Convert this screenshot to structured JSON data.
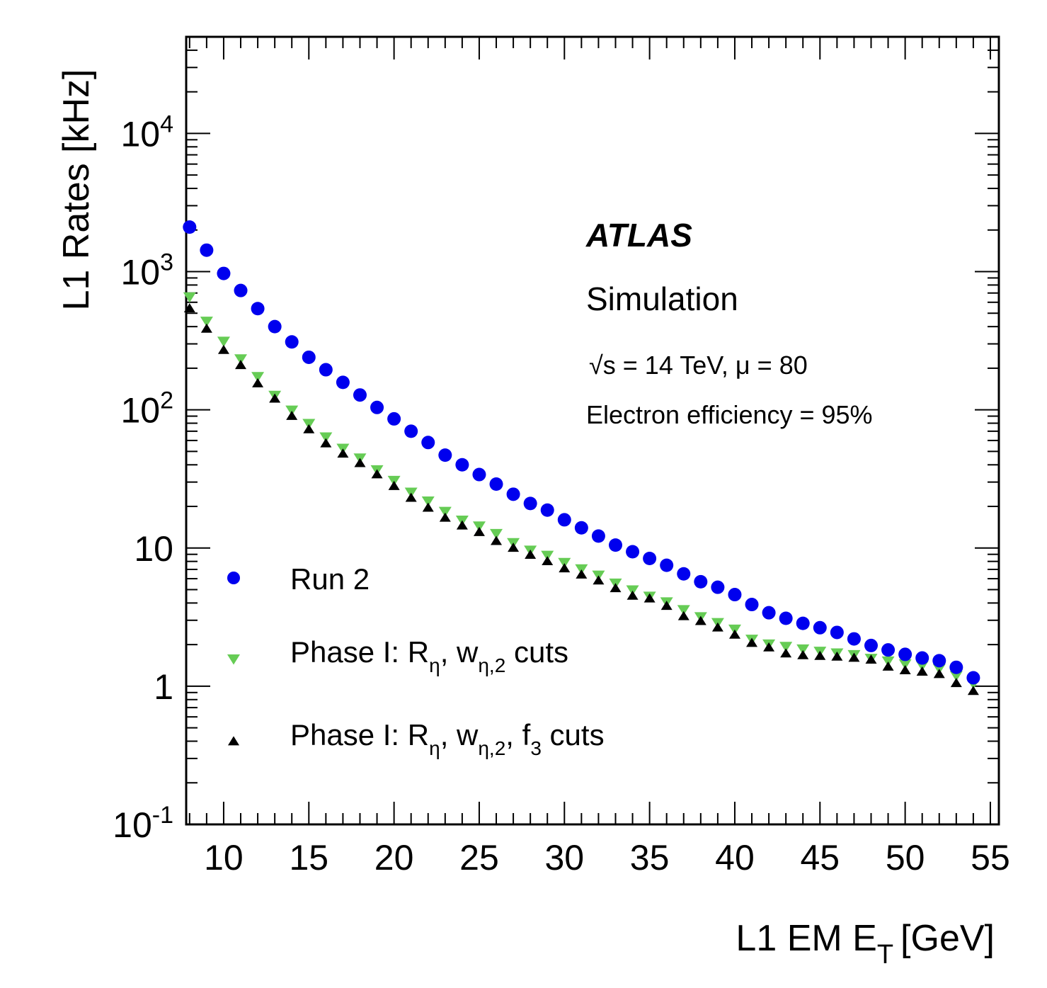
{
  "chart_data": {
    "type": "scatter",
    "title": "",
    "xlabel": "L1 EM E",
    "xlabel_sub": "T",
    "xlabel_unit": "[GeV]",
    "ylabel": "L1 Rates [kHz]",
    "xlim": [
      7.8,
      55.5
    ],
    "ylim": [
      0.1,
      50000
    ],
    "yscale": "log",
    "x_ticks": [
      10,
      15,
      20,
      25,
      30,
      35,
      40,
      45,
      50,
      55
    ],
    "y_ticks": [
      {
        "value": 0.1,
        "base": "10",
        "exp": "-1"
      },
      {
        "value": 1,
        "base": "1",
        "exp": ""
      },
      {
        "value": 10,
        "base": "10",
        "exp": ""
      },
      {
        "value": 100,
        "base": "10",
        "exp": "2"
      },
      {
        "value": 1000,
        "base": "10",
        "exp": "3"
      },
      {
        "value": 10000,
        "base": "10",
        "exp": "4"
      }
    ],
    "x": [
      8,
      9,
      10,
      11,
      12,
      13,
      14,
      15,
      16,
      17,
      18,
      19,
      20,
      21,
      22,
      23,
      24,
      25,
      26,
      27,
      28,
      29,
      30,
      31,
      32,
      33,
      34,
      35,
      36,
      37,
      38,
      39,
      40,
      41,
      42,
      43,
      44,
      45,
      46,
      47,
      48,
      49,
      50,
      51,
      52,
      53,
      54
    ],
    "series": [
      {
        "name": "Run 2",
        "marker": "circle",
        "color": "#0000ee",
        "values": [
          2100,
          1430,
          970,
          730,
          540,
          400,
          310,
          240,
          195,
          158,
          128,
          104,
          86,
          70,
          58,
          47,
          40,
          34,
          29,
          24.5,
          21,
          18.8,
          16,
          14,
          12.2,
          10.5,
          9.4,
          8.4,
          7.5,
          6.5,
          5.7,
          5.2,
          4.6,
          3.9,
          3.4,
          3.1,
          2.85,
          2.65,
          2.45,
          2.2,
          1.97,
          1.83,
          1.7,
          1.6,
          1.53,
          1.37,
          1.15
        ]
      },
      {
        "name": "Phase I: Rη, wη,2 cuts",
        "marker": "triangle-down",
        "color": "#66cc55",
        "values": [
          660,
          440,
          315,
          235,
          175,
          128,
          100,
          80,
          64,
          53,
          45,
          37,
          31,
          25.5,
          22,
          18.5,
          16,
          14.5,
          12.8,
          11,
          9.7,
          8.9,
          7.9,
          7.1,
          6.4,
          5.6,
          5,
          4.5,
          4.1,
          3.6,
          3.2,
          2.9,
          2.6,
          2.2,
          2.03,
          1.95,
          1.87,
          1.8,
          1.75,
          1.7,
          1.6,
          1.53,
          1.46,
          1.42,
          1.35,
          1.2,
          1.05
        ]
      },
      {
        "name": "Phase I: Rη, wη,2, f3 cuts",
        "marker": "triangle-up",
        "color": "#000000",
        "values": [
          540,
          385,
          270,
          210,
          155,
          120,
          90,
          72,
          57,
          48,
          41,
          34,
          28,
          23,
          19.5,
          16.5,
          14.5,
          13,
          11.2,
          10,
          8.9,
          8,
          7.1,
          6.4,
          5.8,
          5.1,
          4.5,
          4.3,
          3.8,
          3.2,
          2.95,
          2.65,
          2.35,
          2.05,
          1.9,
          1.72,
          1.67,
          1.65,
          1.63,
          1.6,
          1.55,
          1.38,
          1.3,
          1.27,
          1.22,
          1.05,
          0.92
        ]
      }
    ],
    "legend": {
      "placement": "bottom-left",
      "entries": [
        {
          "prefix": "Run 2"
        },
        {
          "prefix": "Phase I: R",
          "sub1": "η",
          "mid": ", w",
          "sub2": "η,2",
          "suffix": " cuts"
        },
        {
          "prefix": "Phase I: R",
          "sub1": "η",
          "mid": ", w",
          "sub2": "η,2",
          "mid2": ", f",
          "sub3": "3",
          "suffix": " cuts"
        }
      ]
    },
    "annotations": {
      "experiment": "ATLAS",
      "label": "Simulation",
      "energy_sqrt": "√s",
      "energy_rest": " = 14 TeV,",
      "pileup": "μ = 80",
      "efficiency": "Electron efficiency = 95%"
    },
    "grid": false
  }
}
